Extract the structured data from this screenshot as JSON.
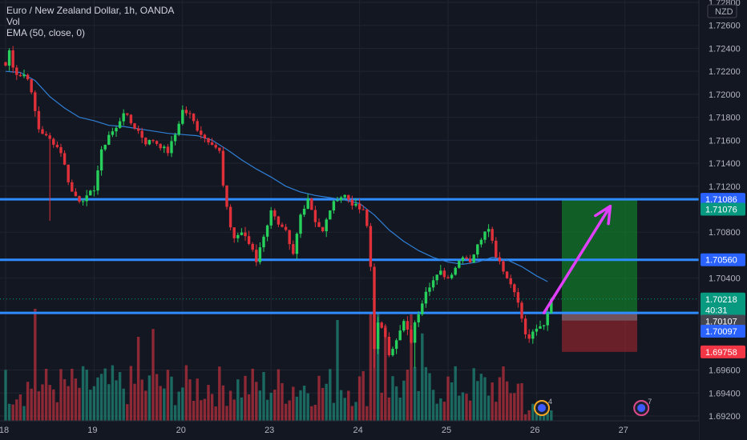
{
  "legend": {
    "title": "Euro / New Zealand Dollar, 1h, OANDA",
    "vol": "Vol",
    "ema": "EMA (50, close, 0)"
  },
  "currency": "NZD",
  "chart_data": {
    "type": "candlestick",
    "symbol": "EURNZD",
    "interval": "1h",
    "ylim": [
      1.692,
      1.728
    ],
    "y_ticks": [
      "1.72800",
      "1.72600",
      "1.72400",
      "1.72200",
      "1.72000",
      "1.71800",
      "1.71600",
      "1.71400",
      "1.71200",
      "1.70800",
      "1.70400",
      "1.69600",
      "1.69400",
      "1.69200"
    ],
    "x_ticks": [
      {
        "label": "18",
        "x": 0
      },
      {
        "label": "19",
        "x": 24
      },
      {
        "label": "20",
        "x": 48
      },
      {
        "label": "23",
        "x": 72
      },
      {
        "label": "24",
        "x": 96
      },
      {
        "label": "25",
        "x": 120
      },
      {
        "label": "26",
        "x": 144
      },
      {
        "label": "27",
        "x": 168
      }
    ],
    "horizontal_levels": [
      1.71086,
      1.7056,
      1.70097
    ],
    "price_tags": [
      {
        "value": "1.71086",
        "price": 1.71086,
        "color": "#2962ff"
      },
      {
        "value": "1.71076",
        "price": 1.71,
        "color": "#089981"
      },
      {
        "value": "1.70560",
        "price": 1.7056,
        "color": "#2962ff"
      },
      {
        "value": "1.70218",
        "price": 1.70218,
        "color": "#089981"
      },
      {
        "value": "40:31",
        "price": 1.70121,
        "color": "#089981"
      },
      {
        "value": "1.70107",
        "price": 1.70025,
        "color": "#434651"
      },
      {
        "value": "1.70097",
        "price": 1.69938,
        "color": "#2962ff"
      },
      {
        "value": "1.69758",
        "price": 1.69758,
        "color": "#f23645"
      }
    ],
    "position": {
      "type": "long",
      "entry": 1.70097,
      "target": 1.71086,
      "stop": 1.69758,
      "start_x": 150,
      "end_x": 170
    },
    "arrow": {
      "from": [
        146,
        1.70097
      ],
      "to": [
        164,
        1.71026
      ],
      "color": "#e040fb"
    },
    "current_price": 1.70218,
    "anchors": [
      [
        0,
        1.7225
      ],
      [
        1,
        1.7238
      ],
      [
        2,
        1.7225
      ],
      [
        3,
        1.7218
      ],
      [
        4,
        1.7216
      ],
      [
        5,
        1.7217
      ],
      [
        6,
        1.7215
      ],
      [
        9,
        1.717
      ],
      [
        11,
        1.7163
      ],
      [
        13,
        1.7158
      ],
      [
        15,
        1.715
      ],
      [
        16,
        1.7138
      ],
      [
        17,
        1.7125
      ],
      [
        18,
        1.7115
      ],
      [
        20,
        1.7108
      ],
      [
        22,
        1.711
      ],
      [
        24,
        1.7118
      ],
      [
        26,
        1.715
      ],
      [
        28,
        1.7165
      ],
      [
        30,
        1.717
      ],
      [
        32,
        1.7185
      ],
      [
        34,
        1.7175
      ],
      [
        36,
        1.7168
      ],
      [
        38,
        1.7158
      ],
      [
        40,
        1.716
      ],
      [
        42,
        1.7155
      ],
      [
        44,
        1.715
      ],
      [
        46,
        1.7165
      ],
      [
        48,
        1.7186
      ],
      [
        50,
        1.7182
      ],
      [
        52,
        1.717
      ],
      [
        54,
        1.7162
      ],
      [
        56,
        1.7158
      ],
      [
        58,
        1.715
      ],
      [
        59,
        1.712
      ],
      [
        60,
        1.71
      ],
      [
        61,
        1.7085
      ],
      [
        62,
        1.7075
      ],
      [
        64,
        1.708
      ],
      [
        66,
        1.707
      ],
      [
        67,
        1.7065
      ],
      [
        68,
        1.7055
      ],
      [
        69,
        1.7068
      ],
      [
        70,
        1.7075
      ],
      [
        72,
        1.71
      ],
      [
        74,
        1.7085
      ],
      [
        76,
        1.708
      ],
      [
        77,
        1.7068
      ],
      [
        78,
        1.706
      ],
      [
        79,
        1.7078
      ],
      [
        80,
        1.7095
      ],
      [
        82,
        1.711
      ],
      [
        84,
        1.709
      ],
      [
        86,
        1.708
      ],
      [
        88,
        1.71
      ],
      [
        90,
        1.711
      ],
      [
        92,
        1.7112
      ],
      [
        94,
        1.7105
      ],
      [
        96,
        1.71
      ],
      [
        97,
        1.7098
      ],
      [
        98,
        1.7085
      ],
      [
        99,
        1.705
      ],
      [
        100,
        1.698
      ],
      [
        101,
        1.7
      ],
      [
        102,
        1.6995
      ],
      [
        103,
        1.699
      ],
      [
        104,
        1.6975
      ],
      [
        106,
        1.6985
      ],
      [
        108,
        1.7002
      ],
      [
        110,
        1.6985
      ],
      [
        111,
        1.7
      ],
      [
        112,
        1.701
      ],
      [
        114,
        1.703
      ],
      [
        116,
        1.7038
      ],
      [
        118,
        1.7045
      ],
      [
        120,
        1.704
      ],
      [
        122,
        1.705
      ],
      [
        124,
        1.706
      ],
      [
        126,
        1.7055
      ],
      [
        128,
        1.7068
      ],
      [
        130,
        1.7082
      ],
      [
        131,
        1.7085
      ],
      [
        132,
        1.7072
      ],
      [
        133,
        1.706
      ],
      [
        134,
        1.7055
      ],
      [
        136,
        1.704
      ],
      [
        138,
        1.703
      ],
      [
        140,
        1.7005
      ],
      [
        141,
        1.699
      ],
      [
        142,
        1.6988
      ],
      [
        144,
        1.6995
      ],
      [
        146,
        1.7
      ],
      [
        147,
        1.701
      ],
      [
        148,
        1.702
      ]
    ],
    "ema_points": [
      [
        0,
        1.722
      ],
      [
        4,
        1.7219
      ],
      [
        8,
        1.7212
      ],
      [
        12,
        1.7198
      ],
      [
        16,
        1.7188
      ],
      [
        20,
        1.718
      ],
      [
        24,
        1.7177
      ],
      [
        28,
        1.7173
      ],
      [
        32,
        1.7172
      ],
      [
        36,
        1.717
      ],
      [
        40,
        1.7168
      ],
      [
        44,
        1.7166
      ],
      [
        48,
        1.7165
      ],
      [
        52,
        1.7164
      ],
      [
        56,
        1.716
      ],
      [
        60,
        1.7152
      ],
      [
        64,
        1.7143
      ],
      [
        68,
        1.7135
      ],
      [
        72,
        1.7128
      ],
      [
        76,
        1.712
      ],
      [
        80,
        1.7115
      ],
      [
        84,
        1.7112
      ],
      [
        88,
        1.711
      ],
      [
        92,
        1.7108
      ],
      [
        96,
        1.7105
      ],
      [
        100,
        1.7095
      ],
      [
        104,
        1.7082
      ],
      [
        108,
        1.7072
      ],
      [
        112,
        1.7064
      ],
      [
        116,
        1.7058
      ],
      [
        120,
        1.7054
      ],
      [
        124,
        1.7052
      ],
      [
        128,
        1.7054
      ],
      [
        132,
        1.7058
      ],
      [
        136,
        1.7056
      ],
      [
        140,
        1.705
      ],
      [
        144,
        1.7042
      ],
      [
        147,
        1.7037
      ]
    ],
    "volume_spikes": [
      [
        8,
        1.0
      ],
      [
        36,
        0.75
      ],
      [
        40,
        0.82
      ],
      [
        90,
        0.9
      ],
      [
        100,
        1.0
      ],
      [
        103,
        0.85
      ],
      [
        110,
        0.95
      ],
      [
        113,
        0.78
      ]
    ]
  },
  "colors": {
    "background": "#131722",
    "grid": "#1f2430",
    "up": "#22ab94",
    "down": "#f23645",
    "up_bright": "#26d05a",
    "down_bright": "#e0303a",
    "level": "#2f8cff",
    "ema": "#2f7fd6",
    "target_zone": "rgba(16,140,40,0.62)",
    "stop_zone": "rgba(178,40,48,0.55)",
    "axis_bg": "#131722"
  },
  "badges": [
    {
      "count": "4",
      "x": 145,
      "color": "#f5a623"
    },
    {
      "count": "7",
      "x": 172,
      "color": "#e04a8a"
    }
  ]
}
